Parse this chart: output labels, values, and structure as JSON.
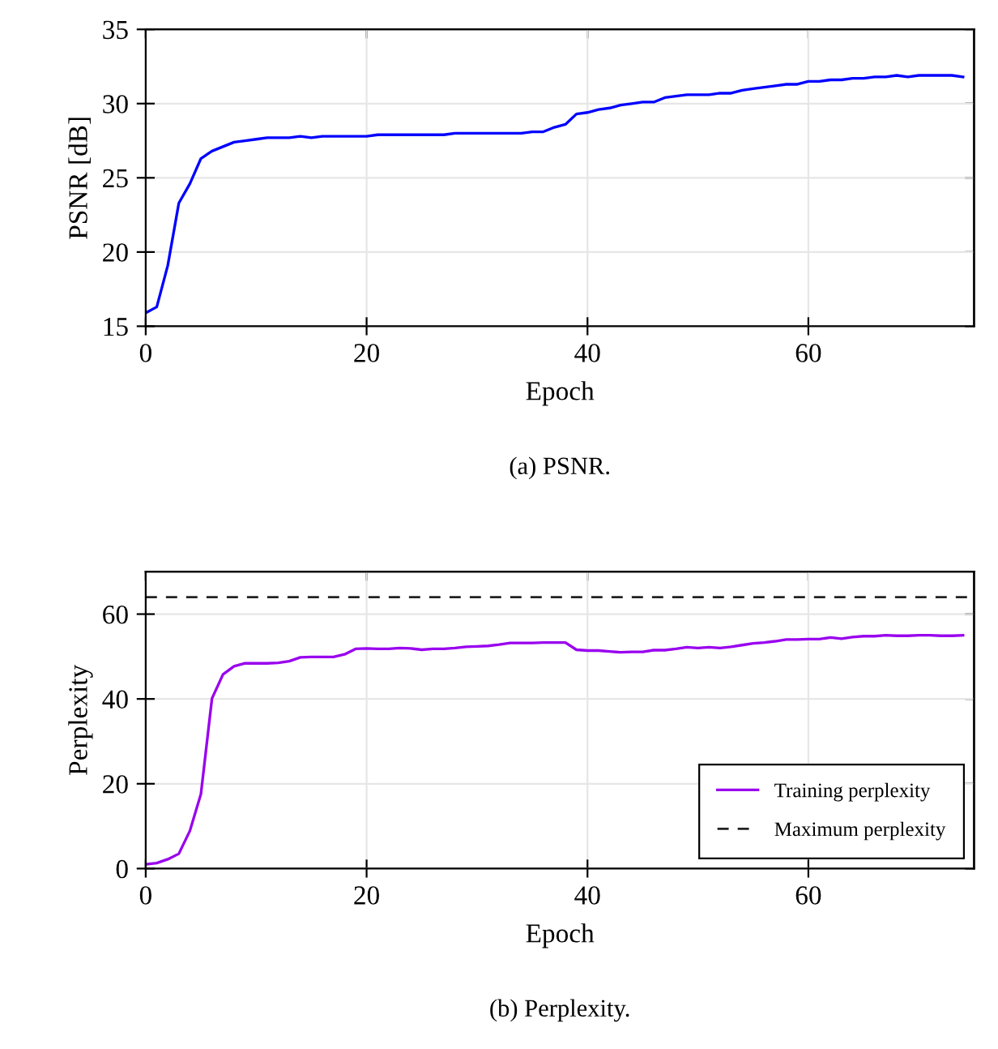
{
  "chart_data": [
    {
      "type": "line",
      "title": "(a) PSNR.",
      "xlabel": "Epoch",
      "ylabel": "PSNR [dB]",
      "xlim": [
        0,
        75
      ],
      "ylim": [
        15,
        35
      ],
      "xticks": [
        0,
        20,
        40,
        60
      ],
      "yticks": [
        15,
        20,
        25,
        30,
        35
      ],
      "grid": true,
      "legend": false,
      "tick_labels": "xy",
      "x": [
        0,
        1,
        2,
        3,
        4,
        5,
        6,
        7,
        8,
        9,
        10,
        11,
        12,
        13,
        14,
        15,
        16,
        17,
        18,
        19,
        20,
        21,
        22,
        23,
        24,
        25,
        26,
        27,
        28,
        29,
        30,
        31,
        32,
        33,
        34,
        35,
        36,
        37,
        38,
        39,
        40,
        41,
        42,
        43,
        44,
        45,
        46,
        47,
        48,
        49,
        50,
        51,
        52,
        53,
        54,
        55,
        56,
        57,
        58,
        59,
        60,
        61,
        62,
        63,
        64,
        65,
        66,
        67,
        68,
        69,
        70,
        71,
        72,
        73,
        74
      ],
      "series": [
        {
          "color": "#0000ff",
          "values": [
            15.9,
            16.3,
            19.1,
            23.3,
            24.6,
            26.3,
            26.8,
            27.1,
            27.4,
            27.5,
            27.6,
            27.7,
            27.7,
            27.7,
            27.8,
            27.7,
            27.8,
            27.8,
            27.8,
            27.8,
            27.8,
            27.9,
            27.9,
            27.9,
            27.9,
            27.9,
            27.9,
            27.9,
            28.0,
            28.0,
            28.0,
            28.0,
            28.0,
            28.0,
            28.0,
            28.1,
            28.1,
            28.4,
            28.6,
            29.3,
            29.4,
            29.6,
            29.7,
            29.9,
            30.0,
            30.1,
            30.1,
            30.4,
            30.5,
            30.6,
            30.6,
            30.6,
            30.7,
            30.7,
            30.9,
            31.0,
            31.1,
            31.2,
            31.3,
            31.3,
            31.5,
            31.5,
            31.6,
            31.6,
            31.7,
            31.7,
            31.8,
            31.8,
            31.9,
            31.8,
            31.9,
            31.9,
            31.9,
            31.9,
            31.8
          ]
        }
      ]
    },
    {
      "type": "line",
      "title": "(b) Perplexity.",
      "xlabel": "Epoch",
      "ylabel": "Perplexity",
      "xlim": [
        0,
        75
      ],
      "ylim": [
        0,
        70
      ],
      "xticks": [
        0,
        20,
        40,
        60
      ],
      "yticks": [
        0,
        20,
        40,
        60
      ],
      "grid": true,
      "legend": "bottom right",
      "x": [
        0,
        1,
        2,
        3,
        4,
        5,
        6,
        7,
        8,
        9,
        10,
        11,
        12,
        13,
        14,
        15,
        16,
        17,
        18,
        19,
        20,
        21,
        22,
        23,
        24,
        25,
        26,
        27,
        28,
        29,
        30,
        31,
        32,
        33,
        34,
        35,
        36,
        37,
        38,
        39,
        40,
        41,
        42,
        43,
        44,
        45,
        46,
        47,
        48,
        49,
        50,
        51,
        52,
        53,
        54,
        55,
        56,
        57,
        58,
        59,
        60,
        61,
        62,
        63,
        64,
        65,
        66,
        67,
        68,
        69,
        70,
        71,
        72,
        73,
        74
      ],
      "series": [
        {
          "name": "Training perplexity",
          "color": "#9900ee",
          "values": [
            1.0,
            1.3,
            2.2,
            3.5,
            8.9,
            17.6,
            40.1,
            45.8,
            47.7,
            48.4,
            48.4,
            48.4,
            48.5,
            48.9,
            49.8,
            49.9,
            49.9,
            49.9,
            50.5,
            51.8,
            51.9,
            51.8,
            51.8,
            52.0,
            51.9,
            51.6,
            51.8,
            51.8,
            52.0,
            52.3,
            52.4,
            52.5,
            52.8,
            53.2,
            53.2,
            53.2,
            53.3,
            53.3,
            53.3,
            51.6,
            51.4,
            51.4,
            51.2,
            51.0,
            51.1,
            51.1,
            51.5,
            51.5,
            51.8,
            52.2,
            52.0,
            52.2,
            52.0,
            52.3,
            52.7,
            53.1,
            53.3,
            53.6,
            54.0,
            54.0,
            54.1,
            54.1,
            54.5,
            54.2,
            54.6,
            54.8,
            54.8,
            55.0,
            54.9,
            54.9,
            55.0,
            55.0,
            54.9,
            54.9,
            55.0
          ]
        }
      ],
      "ref_lines": [
        {
          "axis": "y",
          "value": 64,
          "label": "Maximum perplexity",
          "color": "#222222",
          "line_style": "dashed"
        }
      ]
    }
  ]
}
